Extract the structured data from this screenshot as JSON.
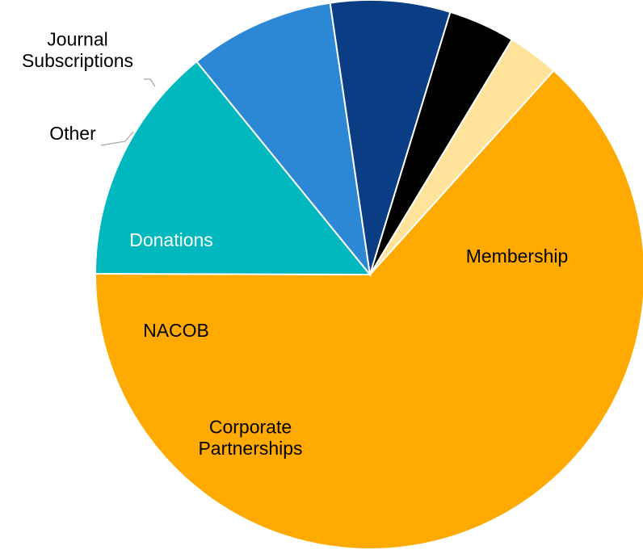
{
  "chart_data": {
    "type": "pie",
    "title": "",
    "slices": [
      {
        "label": "Membership",
        "value": 63.0,
        "color": "#FFAA00",
        "label_color": "#000000"
      },
      {
        "label": "Corporate Partnerships",
        "value": 14.0,
        "color": "#00B8BE",
        "label_color": "#000000"
      },
      {
        "label": "NACOB",
        "value": 8.5,
        "color": "#2C87D5",
        "label_color": "#000000"
      },
      {
        "label": "Donations",
        "value": 7.0,
        "color": "#0A3D84",
        "label_color": "#FFFFFF"
      },
      {
        "label": "Other",
        "value": 3.9,
        "color": "#000000",
        "label_color": "#000000"
      },
      {
        "label": "Journal Subscriptions",
        "value": 3.0,
        "color": "#FFE39A",
        "label_color": "#000000"
      }
    ],
    "slice_border_color": "#FFFFFF"
  }
}
